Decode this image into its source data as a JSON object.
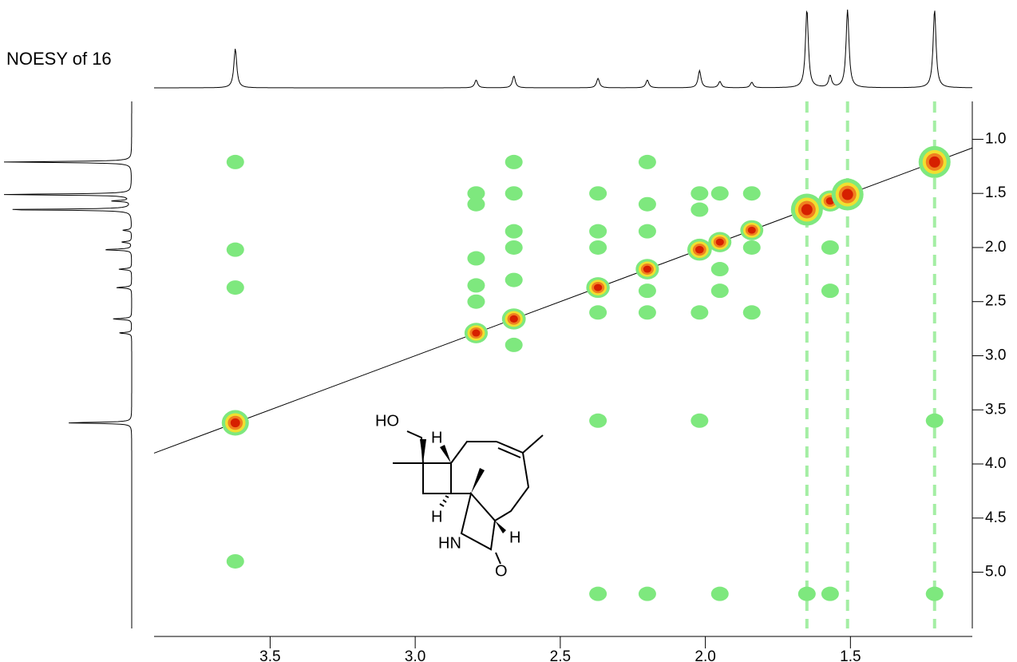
{
  "chart_data": {
    "type": "nmr2d",
    "title": "NOESY of 16",
    "xlim": [
      3.9,
      1.08
    ],
    "ylim": [
      0.65,
      5.52
    ],
    "xticks": [
      {
        "value": 3.5,
        "label": "3.5"
      },
      {
        "value": 3.0,
        "label": "3.0"
      },
      {
        "value": 2.5,
        "label": "2.5"
      },
      {
        "value": 2.0,
        "label": "2.0"
      },
      {
        "value": 1.5,
        "label": "1.5"
      }
    ],
    "yticks": [
      {
        "value": 1.0,
        "label": "1.0"
      },
      {
        "value": 1.5,
        "label": "1.5"
      },
      {
        "value": 2.0,
        "label": "2.0"
      },
      {
        "value": 2.5,
        "label": "2.5"
      },
      {
        "value": 3.0,
        "label": "3.0"
      },
      {
        "value": 3.5,
        "label": "3.5"
      },
      {
        "value": 4.0,
        "label": "4.0"
      },
      {
        "value": 4.5,
        "label": "4.5"
      },
      {
        "value": 5.0,
        "label": "5.0"
      }
    ],
    "diagonal": true,
    "series": [
      {
        "color": "#d62000",
        "x": [
          3.62,
          2.79,
          2.66,
          2.37,
          2.2,
          2.02,
          1.95,
          1.84,
          1.65,
          1.57,
          1.51,
          1.21
        ],
        "y": [
          3.62,
          2.79,
          2.66,
          2.37,
          2.2,
          2.02,
          1.95,
          1.84,
          1.65,
          1.57,
          1.51,
          1.21
        ],
        "sizes": [
          0.5,
          0.1,
          0.15,
          0.12,
          0.1,
          0.22,
          0.08,
          0.07,
          1.0,
          0.15,
          1.0,
          1.0
        ]
      },
      {
        "color": "#7ee87e",
        "x": [
          3.62,
          3.62,
          3.62,
          3.62,
          2.79,
          2.79,
          2.79,
          2.79,
          2.79,
          2.66,
          2.66,
          2.66,
          2.66,
          2.66,
          2.66,
          2.37,
          2.37,
          2.37,
          2.37,
          2.37,
          2.37,
          2.2,
          2.2,
          2.2,
          2.2,
          2.2,
          2.2,
          2.02,
          2.02,
          2.02,
          2.02,
          1.95,
          1.95,
          1.95,
          1.95,
          1.84,
          1.84,
          1.84,
          1.57,
          1.57,
          1.57,
          1.21,
          1.21,
          1.65
        ],
        "y": [
          1.21,
          2.02,
          2.37,
          4.9,
          1.5,
          1.6,
          2.1,
          2.35,
          2.5,
          1.21,
          1.5,
          1.85,
          2.0,
          2.3,
          2.9,
          1.5,
          1.85,
          2.0,
          2.6,
          3.6,
          5.2,
          1.21,
          1.6,
          1.85,
          2.4,
          2.6,
          5.2,
          1.5,
          1.65,
          2.6,
          3.6,
          1.5,
          2.2,
          2.4,
          5.2,
          1.5,
          2.0,
          2.6,
          2.0,
          2.4,
          5.2,
          3.6,
          5.2,
          5.2
        ]
      }
    ]
  },
  "structure": {
    "labels": [
      "HO",
      "H",
      "H",
      "HN",
      "H",
      "O"
    ]
  }
}
